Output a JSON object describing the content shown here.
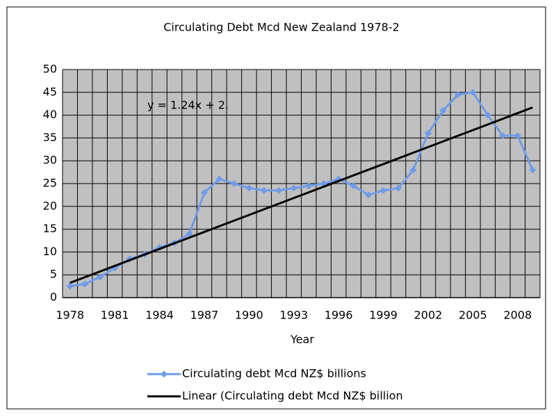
{
  "chart_data": {
    "type": "line",
    "title": "Circulating Debt Mcd New Zealand 1978-2",
    "x_label": "Year",
    "annotation": "y = 1.24x + 2.",
    "categories": [
      "1978",
      null,
      null,
      "1981",
      null,
      null,
      "1984",
      null,
      null,
      "1987",
      null,
      null,
      "1990",
      null,
      null,
      "1993",
      null,
      null,
      "1996",
      null,
      null,
      "1999",
      null,
      null,
      "2002",
      null,
      null,
      "2005",
      null,
      null,
      "2008",
      null
    ],
    "series": [
      {
        "name": "Circulating debt Mcd NZ$ billions",
        "color": "#6f9be8",
        "values": [
          2.5,
          3,
          4.5,
          6.5,
          8.5,
          9.5,
          11,
          12,
          14,
          23,
          26,
          25,
          24,
          23.5,
          23.5,
          24,
          24.5,
          25,
          26,
          24.5,
          22.5,
          23.5,
          24,
          28,
          36,
          41,
          44.5,
          45,
          40,
          35.5,
          35.5,
          28
        ]
      },
      {
        "name": "Linear (Circulating debt Mcd NZ$ billion",
        "color": "#000000",
        "values": [
          3.24,
          4.48,
          5.72,
          6.96,
          8.2,
          9.44,
          10.68,
          11.92,
          13.16,
          14.4,
          15.64,
          16.88,
          18.12,
          19.36,
          20.6,
          21.84,
          23.08,
          24.32,
          25.56,
          26.8,
          28.04,
          29.28,
          30.52,
          31.76,
          33,
          34.24,
          35.48,
          36.72,
          37.96,
          39.2,
          40.44,
          41.68
        ]
      }
    ],
    "ylim": [
      0,
      50
    ],
    "yticks": [
      0,
      5,
      10,
      15,
      20,
      25,
      30,
      35,
      40,
      45,
      50
    ],
    "grid": true
  }
}
